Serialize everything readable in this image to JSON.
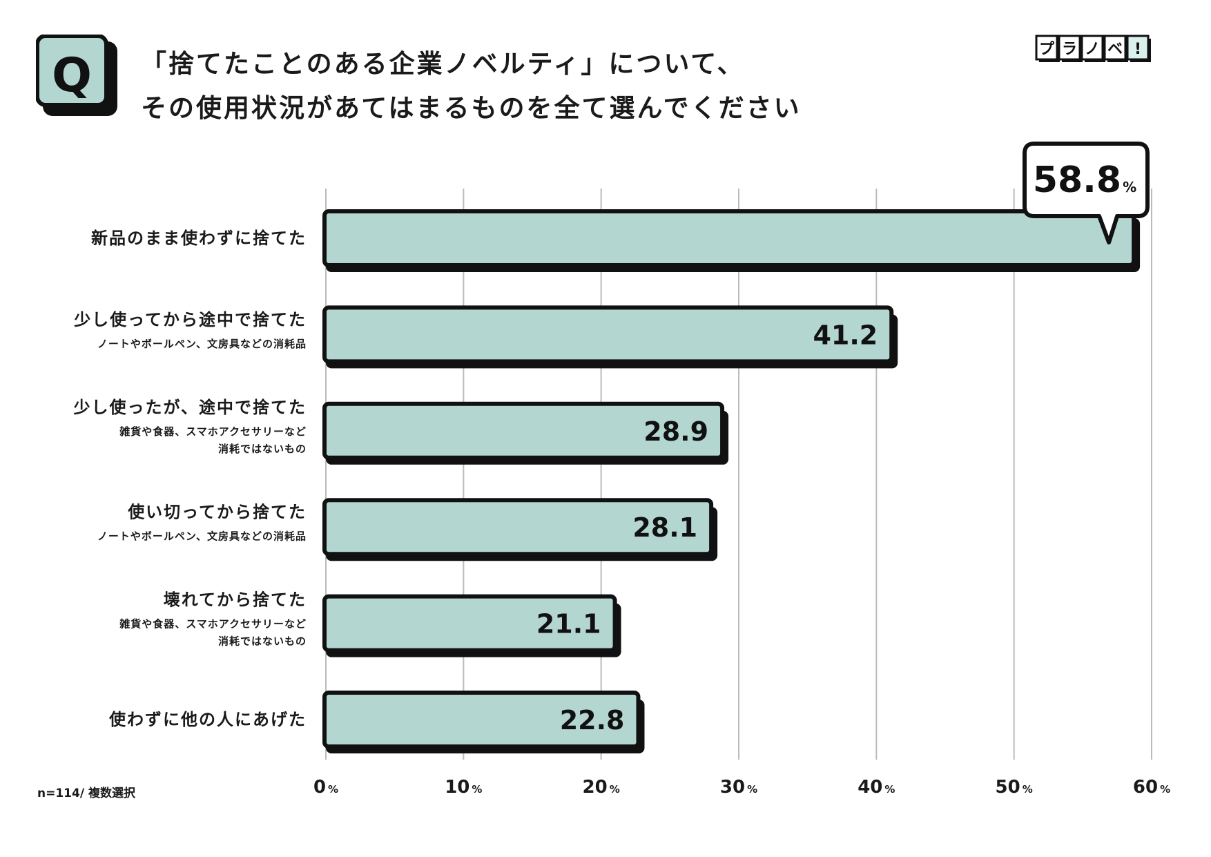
{
  "badge": {
    "letter": "Q"
  },
  "title": {
    "line1": "「捨てたことのある企業ノベルティ」について、",
    "line2": "その使用状況があてはまるものを全て選んでください"
  },
  "logo": {
    "chars": [
      "プ",
      "ラ",
      "ノ",
      "ベ",
      "!"
    ]
  },
  "footnote": "n=114/ 複数選択",
  "colors": {
    "bar_fill": "#b3d6d1",
    "outline": "#111111",
    "grid": "#bbbbbb"
  },
  "chart_data": {
    "type": "bar",
    "orientation": "horizontal",
    "unit": "%",
    "xlim": [
      0,
      60
    ],
    "x_ticks": [
      0,
      10,
      20,
      30,
      40,
      50,
      60
    ],
    "grid": true,
    "categories": [
      {
        "label": "新品のまま使わずに捨てた",
        "sub": []
      },
      {
        "label": "少し使ってから途中で捨てた",
        "sub": [
          "ノートやボールペン、文房具などの消耗品"
        ]
      },
      {
        "label": "少し使ったが、途中で捨てた",
        "sub": [
          "雑貨や食器、スマホアクセサリーなど",
          "消耗ではないもの"
        ]
      },
      {
        "label": "使い切ってから捨てた",
        "sub": [
          "ノートやボールペン、文房具などの消耗品"
        ]
      },
      {
        "label": "壊れてから捨てた",
        "sub": [
          "雑貨や食器、スマホアクセサリーなど",
          "消耗ではないもの"
        ]
      },
      {
        "label": "使わずに他の人にあげた",
        "sub": []
      }
    ],
    "values": [
      58.8,
      41.2,
      28.9,
      28.1,
      21.1,
      22.8
    ],
    "value_labels": [
      "58.8",
      "41.2",
      "28.9",
      "28.1",
      "21.1",
      "22.8"
    ],
    "highlight": {
      "index": 0,
      "label": "58.8"
    }
  }
}
